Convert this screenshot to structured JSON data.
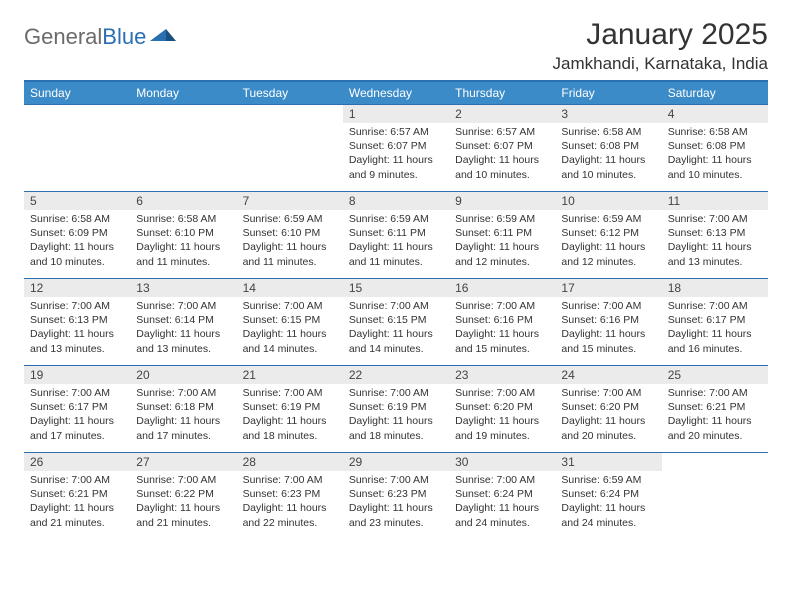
{
  "logo": {
    "text_general": "General",
    "text_blue": "Blue",
    "shape_color": "#2b6fb3"
  },
  "title": {
    "month": "January 2025",
    "location": "Jamkhandi, Karnataka, India",
    "title_fontsize": 30,
    "location_fontsize": 17,
    "title_color": "#333333"
  },
  "calendar": {
    "header_bg": "#3b8bc8",
    "header_color": "#ffffff",
    "border_color": "#2b6fb3",
    "daynum_bg": "#ebebeb",
    "text_color": "#333333",
    "info_fontsize": 10.5,
    "day_labels": [
      "Sunday",
      "Monday",
      "Tuesday",
      "Wednesday",
      "Thursday",
      "Friday",
      "Saturday"
    ],
    "weeks": [
      [
        null,
        null,
        null,
        {
          "n": "1",
          "sunrise": "6:57 AM",
          "sunset": "6:07 PM",
          "dlh": "11",
          "dlm": "9"
        },
        {
          "n": "2",
          "sunrise": "6:57 AM",
          "sunset": "6:07 PM",
          "dlh": "11",
          "dlm": "10"
        },
        {
          "n": "3",
          "sunrise": "6:58 AM",
          "sunset": "6:08 PM",
          "dlh": "11",
          "dlm": "10"
        },
        {
          "n": "4",
          "sunrise": "6:58 AM",
          "sunset": "6:08 PM",
          "dlh": "11",
          "dlm": "10"
        }
      ],
      [
        {
          "n": "5",
          "sunrise": "6:58 AM",
          "sunset": "6:09 PM",
          "dlh": "11",
          "dlm": "10"
        },
        {
          "n": "6",
          "sunrise": "6:58 AM",
          "sunset": "6:10 PM",
          "dlh": "11",
          "dlm": "11"
        },
        {
          "n": "7",
          "sunrise": "6:59 AM",
          "sunset": "6:10 PM",
          "dlh": "11",
          "dlm": "11"
        },
        {
          "n": "8",
          "sunrise": "6:59 AM",
          "sunset": "6:11 PM",
          "dlh": "11",
          "dlm": "11"
        },
        {
          "n": "9",
          "sunrise": "6:59 AM",
          "sunset": "6:11 PM",
          "dlh": "11",
          "dlm": "12"
        },
        {
          "n": "10",
          "sunrise": "6:59 AM",
          "sunset": "6:12 PM",
          "dlh": "11",
          "dlm": "12"
        },
        {
          "n": "11",
          "sunrise": "7:00 AM",
          "sunset": "6:13 PM",
          "dlh": "11",
          "dlm": "13"
        }
      ],
      [
        {
          "n": "12",
          "sunrise": "7:00 AM",
          "sunset": "6:13 PM",
          "dlh": "11",
          "dlm": "13"
        },
        {
          "n": "13",
          "sunrise": "7:00 AM",
          "sunset": "6:14 PM",
          "dlh": "11",
          "dlm": "13"
        },
        {
          "n": "14",
          "sunrise": "7:00 AM",
          "sunset": "6:15 PM",
          "dlh": "11",
          "dlm": "14"
        },
        {
          "n": "15",
          "sunrise": "7:00 AM",
          "sunset": "6:15 PM",
          "dlh": "11",
          "dlm": "14"
        },
        {
          "n": "16",
          "sunrise": "7:00 AM",
          "sunset": "6:16 PM",
          "dlh": "11",
          "dlm": "15"
        },
        {
          "n": "17",
          "sunrise": "7:00 AM",
          "sunset": "6:16 PM",
          "dlh": "11",
          "dlm": "15"
        },
        {
          "n": "18",
          "sunrise": "7:00 AM",
          "sunset": "6:17 PM",
          "dlh": "11",
          "dlm": "16"
        }
      ],
      [
        {
          "n": "19",
          "sunrise": "7:00 AM",
          "sunset": "6:17 PM",
          "dlh": "11",
          "dlm": "17"
        },
        {
          "n": "20",
          "sunrise": "7:00 AM",
          "sunset": "6:18 PM",
          "dlh": "11",
          "dlm": "17"
        },
        {
          "n": "21",
          "sunrise": "7:00 AM",
          "sunset": "6:19 PM",
          "dlh": "11",
          "dlm": "18"
        },
        {
          "n": "22",
          "sunrise": "7:00 AM",
          "sunset": "6:19 PM",
          "dlh": "11",
          "dlm": "18"
        },
        {
          "n": "23",
          "sunrise": "7:00 AM",
          "sunset": "6:20 PM",
          "dlh": "11",
          "dlm": "19"
        },
        {
          "n": "24",
          "sunrise": "7:00 AM",
          "sunset": "6:20 PM",
          "dlh": "11",
          "dlm": "20"
        },
        {
          "n": "25",
          "sunrise": "7:00 AM",
          "sunset": "6:21 PM",
          "dlh": "11",
          "dlm": "20"
        }
      ],
      [
        {
          "n": "26",
          "sunrise": "7:00 AM",
          "sunset": "6:21 PM",
          "dlh": "11",
          "dlm": "21"
        },
        {
          "n": "27",
          "sunrise": "7:00 AM",
          "sunset": "6:22 PM",
          "dlh": "11",
          "dlm": "21"
        },
        {
          "n": "28",
          "sunrise": "7:00 AM",
          "sunset": "6:23 PM",
          "dlh": "11",
          "dlm": "22"
        },
        {
          "n": "29",
          "sunrise": "7:00 AM",
          "sunset": "6:23 PM",
          "dlh": "11",
          "dlm": "23"
        },
        {
          "n": "30",
          "sunrise": "7:00 AM",
          "sunset": "6:24 PM",
          "dlh": "11",
          "dlm": "24"
        },
        {
          "n": "31",
          "sunrise": "6:59 AM",
          "sunset": "6:24 PM",
          "dlh": "11",
          "dlm": "24"
        },
        null
      ]
    ]
  },
  "labels": {
    "sunrise_prefix": "Sunrise: ",
    "sunset_prefix": "Sunset: ",
    "daylight_prefix": "Daylight: ",
    "hours_word": " hours",
    "and_word": "and ",
    "minutes_word": " minutes."
  }
}
